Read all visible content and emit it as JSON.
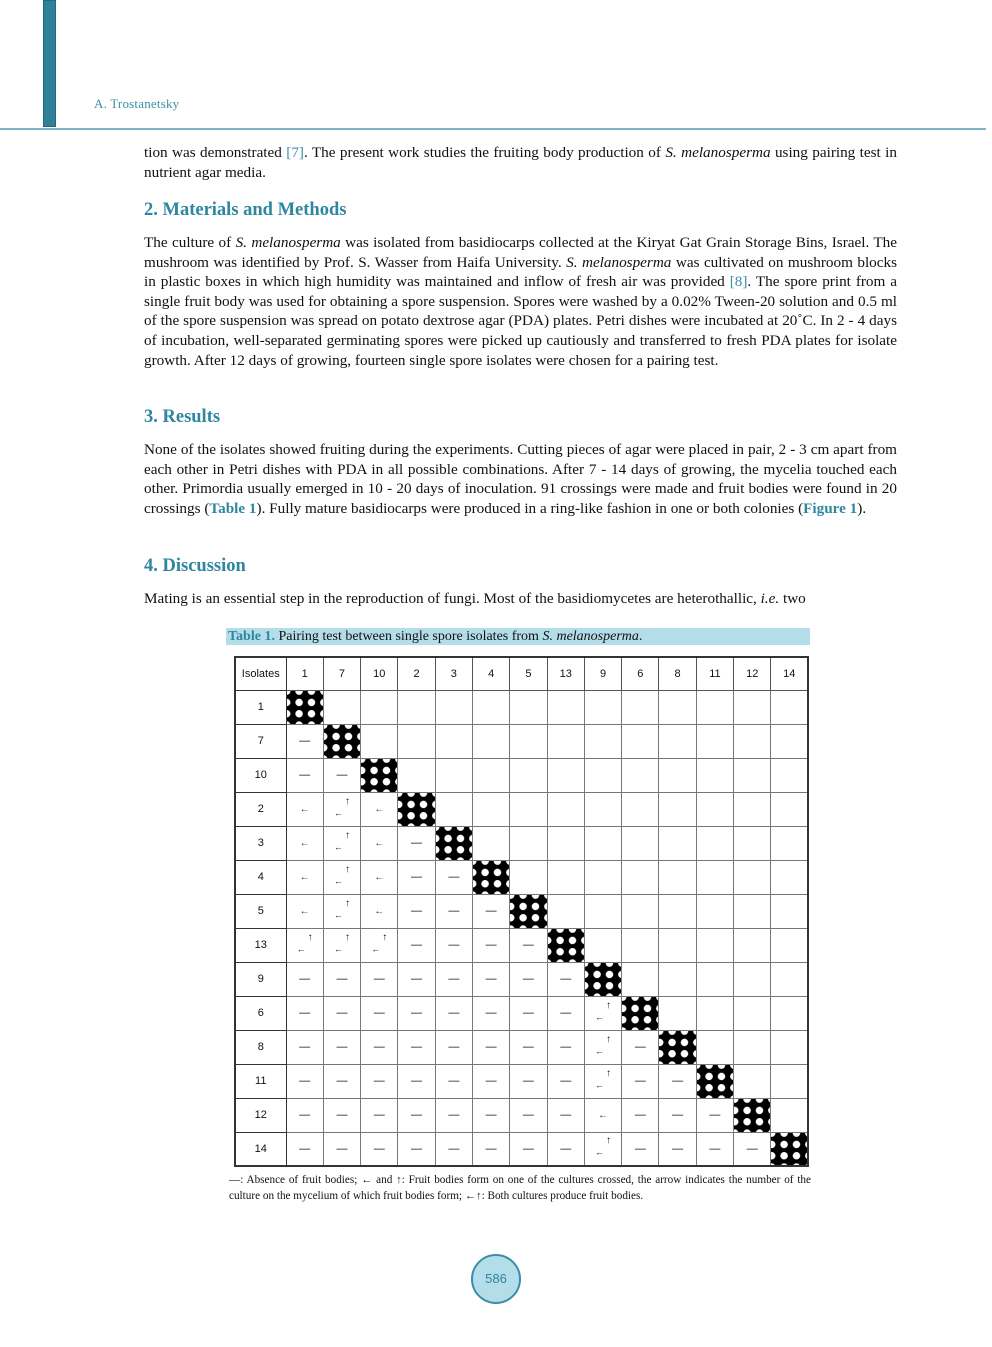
{
  "header": {
    "author": "A. Trostanetsky"
  },
  "intro": {
    "p1a": "tion was demonstrated ",
    "ref7": "[7]",
    "p1b": ". The present work studies the fruiting body production of ",
    "species": "S. melanosperma",
    "p1c": " using pairing test in nutrient agar media."
  },
  "sections": [
    {
      "title": "2. Materials and Methods"
    },
    {
      "title": "3. Results"
    },
    {
      "title": "4. Discussion"
    }
  ],
  "methods": {
    "a": "The culture of ",
    "b": " was isolated from basidiocarps collected at the Kiryat Gat Grain Storage Bins, Israel. The mushroom was identified by Prof. S. Wasser from Haifa University. ",
    "c": " was cultivated on mushroom blocks in plastic boxes in which high humidity was maintained and inflow of fresh air was provided ",
    "ref8": "[8]",
    "d": ". The spore print from a single fruit body was used for obtaining a spore suspension. Spores were washed by a 0.02% Tween-20 solution and 0.5 ml of the spore suspension was spread on potato dextrose agar (PDA) plates. Petri dishes were incubated at 20˚C. In 2 - 4 days of incubation, well-separated germinating spores were picked up cautiously and transferred to fresh PDA plates for isolate growth. After 12 days of growing, fourteen single spore isolates were chosen for a pairing test."
  },
  "results": {
    "a": "None of the isolates showed fruiting during the experiments. Cutting pieces of agar were placed in pair, 2 - 3 cm apart from each other in Petri dishes with PDA in all possible combinations. After 7 - 14 days of growing, the mycelia touched each other. Primordia usually emerged in 10 - 20 days of inoculation. 91 crossings were made and fruit bodies were found in 20 crossings (",
    "table_link": "Table 1",
    "b": "). Fully mature basidiocarps were produced in a ring-like fashion in one or both colonies (",
    "figure_link": "Figure 1",
    "c": ")."
  },
  "discussion": {
    "a": "Mating is an essential step in the reproduction of fungi. Most of the basidiomycetes are heterothallic, ",
    "ie": "i.e.",
    "b": " two"
  },
  "table": {
    "caption_label": "Table 1.",
    "caption_text": " Pairing test between single spore isolates from ",
    "caption_species": "S. melanosperma",
    "caption_end": ".",
    "corner": "Isolates",
    "columns": [
      "1",
      "7",
      "10",
      "2",
      "3",
      "4",
      "5",
      "13",
      "9",
      "6",
      "8",
      "11",
      "12",
      "14"
    ],
    "rows": [
      {
        "label": "1",
        "cells": [
          "X"
        ]
      },
      {
        "label": "7",
        "cells": [
          "—",
          "X"
        ]
      },
      {
        "label": "10",
        "cells": [
          "—",
          "—",
          "X"
        ]
      },
      {
        "label": "2",
        "cells": [
          "←",
          "←↑",
          "←",
          "X"
        ]
      },
      {
        "label": "3",
        "cells": [
          "←",
          "←↑",
          "←",
          "—",
          "X"
        ]
      },
      {
        "label": "4",
        "cells": [
          "←",
          "←↑",
          "←",
          "—",
          "—",
          "X"
        ]
      },
      {
        "label": "5",
        "cells": [
          "←",
          "←↑",
          "←",
          "—",
          "—",
          "—",
          "X"
        ]
      },
      {
        "label": "13",
        "cells": [
          "←↑",
          "←↑",
          "←↑",
          "—",
          "—",
          "—",
          "—",
          "X"
        ]
      },
      {
        "label": "9",
        "cells": [
          "—",
          "—",
          "—",
          "—",
          "—",
          "—",
          "—",
          "—",
          "X"
        ]
      },
      {
        "label": "6",
        "cells": [
          "—",
          "—",
          "—",
          "—",
          "—",
          "—",
          "—",
          "—",
          "←↑",
          "X"
        ]
      },
      {
        "label": "8",
        "cells": [
          "—",
          "—",
          "—",
          "—",
          "—",
          "—",
          "—",
          "—",
          "←↑",
          "—",
          "X"
        ]
      },
      {
        "label": "11",
        "cells": [
          "—",
          "—",
          "—",
          "—",
          "—",
          "—",
          "—",
          "—",
          "←↑",
          "—",
          "—",
          "X"
        ]
      },
      {
        "label": "12",
        "cells": [
          "—",
          "—",
          "—",
          "—",
          "—",
          "—",
          "—",
          "—",
          "←",
          "—",
          "—",
          "—",
          "X"
        ]
      },
      {
        "label": "14",
        "cells": [
          "—",
          "—",
          "—",
          "—",
          "—",
          "—",
          "—",
          "—",
          "←↑",
          "—",
          "—",
          "—",
          "—",
          "X"
        ]
      }
    ],
    "note": "—: Absence of fruit bodies; ← and ↑: Fruit bodies form on one of the cultures crossed, the arrow indicates the number of the culture on the mycelium of which fruit bodies form; ←↑: Both cultures produce fruit bodies."
  },
  "footer": {
    "page_number": "586"
  },
  "colors": {
    "accent": "#2e86a0",
    "caption_bg": "#b3dde9"
  }
}
